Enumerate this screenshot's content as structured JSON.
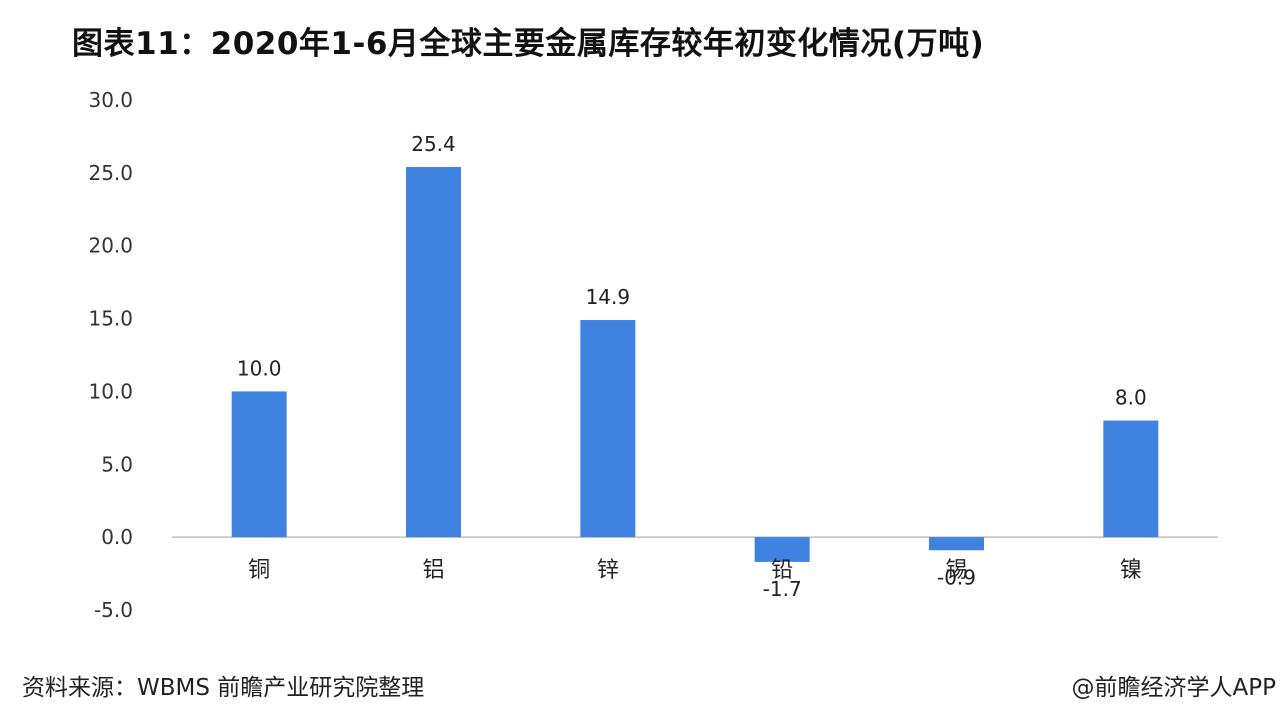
{
  "title": "图表11：2020年1-6月全球主要金属库存较年初变化情况(万吨)",
  "source": "资料来源：WBMS 前瞻产业研究院整理",
  "credit": "@前瞻经济学人APP",
  "colors": {
    "bar": "#3f82e0",
    "axis": "#bfbfbf"
  },
  "chart_data": {
    "type": "bar",
    "title": "图表11：2020年1-6月全球主要金属库存较年初变化情况(万吨)",
    "categories": [
      "铜",
      "铝",
      "锌",
      "铅",
      "锡",
      "镍"
    ],
    "values": [
      10.0,
      25.4,
      14.9,
      -1.7,
      -0.9,
      8.0
    ],
    "value_labels": [
      "10.0",
      "25.4",
      "14.9",
      "-1.7",
      "-0.9",
      "8.0"
    ],
    "yticks": [
      "30.0",
      "25.0",
      "20.0",
      "15.0",
      "10.0",
      "5.0",
      "0.0",
      "-5.0"
    ],
    "ylim": [
      -5,
      30
    ],
    "xlabel": "",
    "ylabel": "",
    "grid": false,
    "legend": "none"
  }
}
